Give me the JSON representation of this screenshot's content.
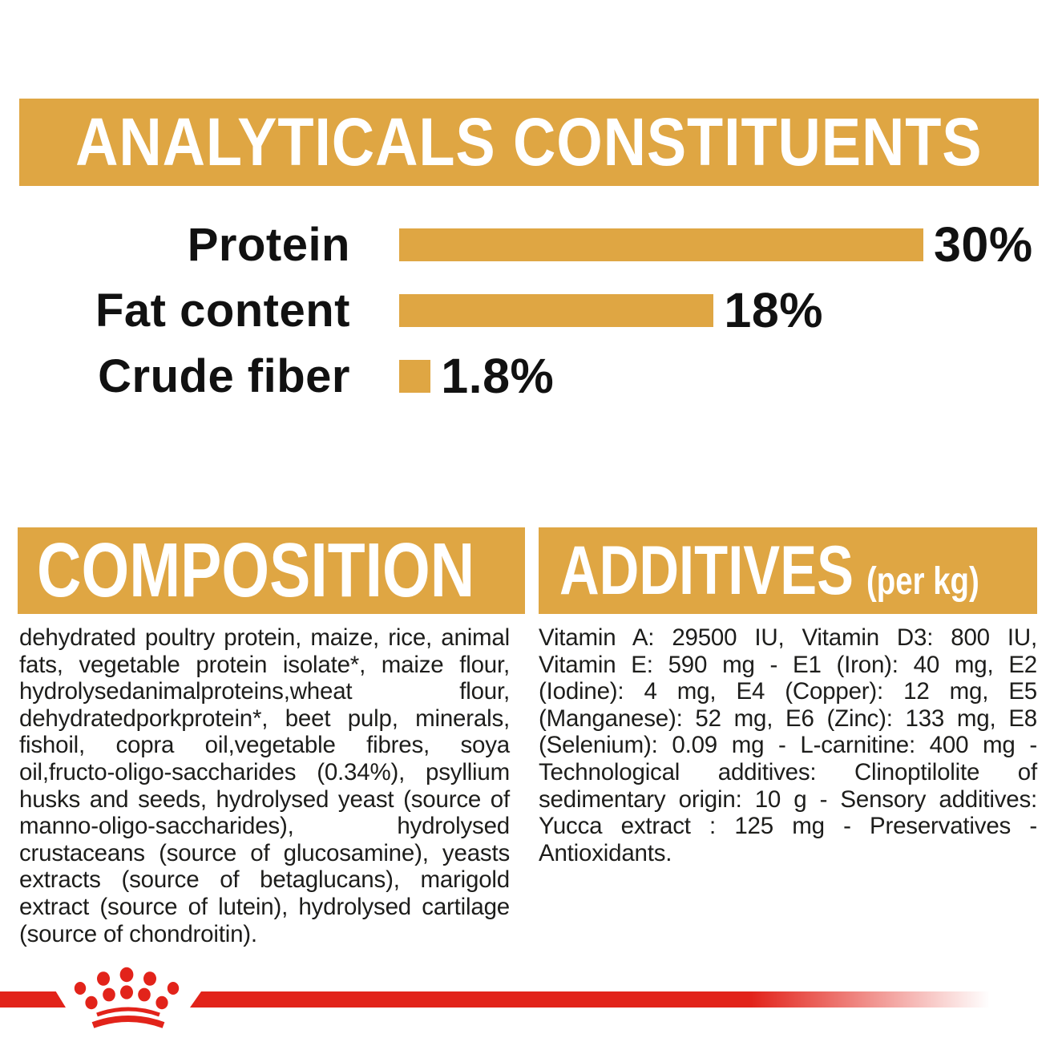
{
  "analyticals": {
    "title": "ANALYTICALS CONSTITUENTS"
  },
  "chart_data": {
    "type": "bar",
    "orientation": "horizontal",
    "title": "ANALYTICALS CONSTITUENTS",
    "categories": [
      "Protein",
      "Fat content",
      "Crude fiber"
    ],
    "values": [
      30,
      18,
      1.8
    ],
    "value_labels": [
      "30%",
      "18%",
      "1.8%"
    ],
    "xlim": [
      0,
      30
    ],
    "grid": false,
    "legend": false,
    "bar_color": "#DFA643"
  },
  "composition": {
    "title": "COMPOSITION",
    "body": "dehydrated poultry protein, maize, rice, animal fats, vegetable protein isolate*, maize flour, hydrolysedanimalproteins,wheat flour, dehydratedporkprotein*, beet pulp, minerals, fishoil, copra oil,vegetable fibres, soya oil,fructo-oligo-saccharides (0.34%), psyllium husks and seeds, hydrolysed yeast (source of manno-oligo-saccharides), hydrolysed crustaceans (source of glucosamine), yeasts extracts (source of betaglucans), marigold extract (source of lutein), hydrolysed cartilage (source of chondroitin)."
  },
  "additives": {
    "title": "ADDITIVES",
    "subtitle": "(per kg)",
    "body": "Vitamin A: 29500 IU, Vitamin D3: 800 IU, Vitamin E: 590 mg - E1 (Iron): 40 mg, E2 (Iodine): 4 mg, E4 (Copper): 12 mg, E5 (Manganese): 52 mg, E6 (Zinc): 133 mg, E8 (Selenium): 0.09 mg - L-carnitine: 400 mg - Technological additives: Clinoptilolite of sedimentary origin: 10 g - Sensory additives: Yucca extract : 125 mg - Preservatives - Antioxidants.",
    "subtitle_note": "per kg"
  },
  "footer": {
    "logo": "royal-canin-crown"
  },
  "colors": {
    "gold": "#DFA643",
    "red": "#E2231A",
    "ink": "#1D1D1B"
  }
}
